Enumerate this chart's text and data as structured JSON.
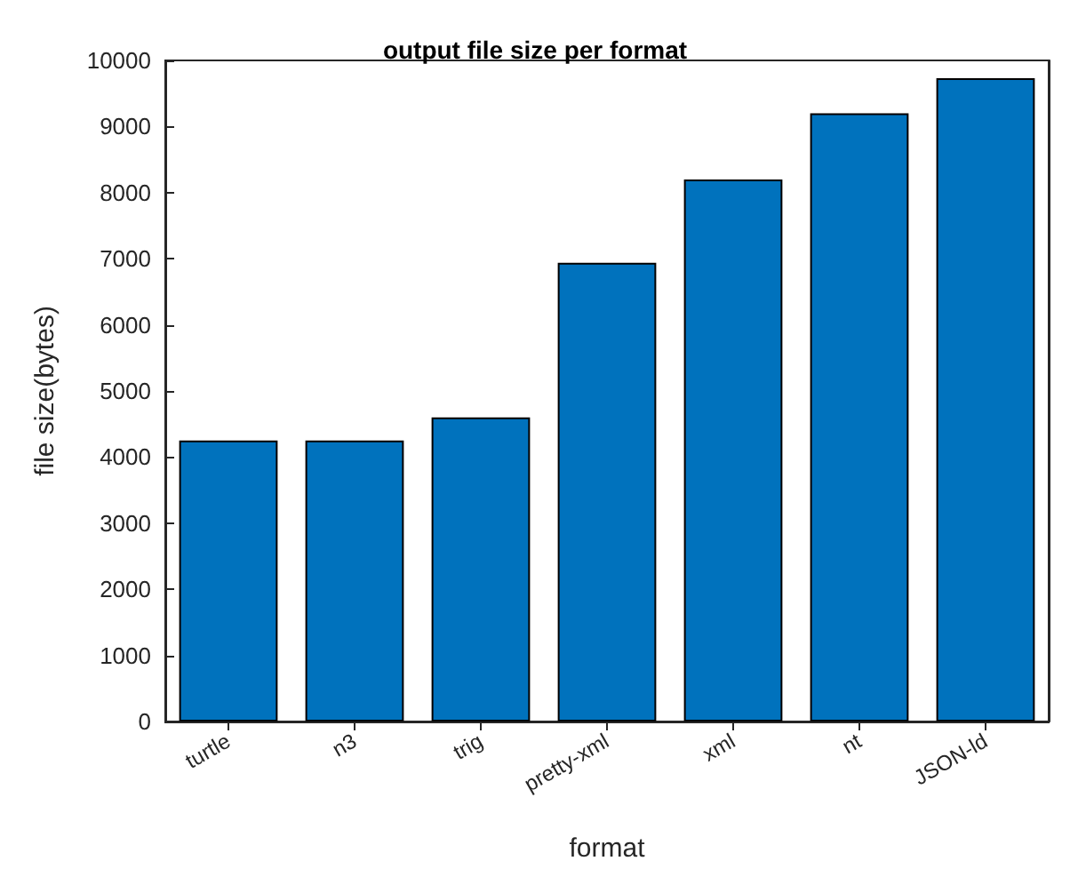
{
  "chart_data": {
    "type": "bar",
    "title": "output file size per format",
    "xlabel": "format",
    "ylabel": "file size(bytes)",
    "categories": [
      "turtle",
      "n3",
      "trig",
      "pretty-xml",
      "xml",
      "nt",
      "JSON-ld"
    ],
    "values": [
      4250,
      4250,
      4600,
      6940,
      8200,
      9200,
      9730
    ],
    "color": "#0072bd",
    "ylim": [
      0,
      10000
    ],
    "yticks": [
      0,
      1000,
      2000,
      3000,
      4000,
      5000,
      6000,
      7000,
      8000,
      9000,
      10000
    ],
    "grid": false
  }
}
